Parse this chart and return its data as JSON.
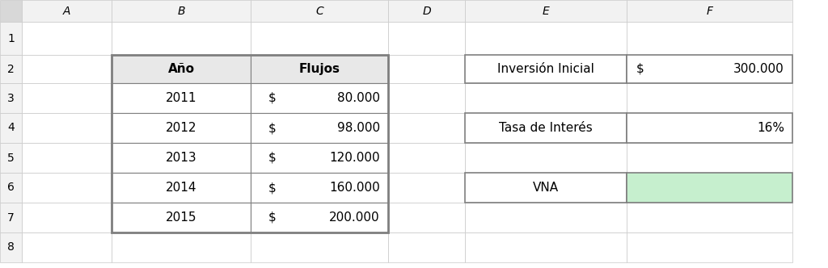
{
  "col_headers": [
    "A",
    "B",
    "C",
    "D",
    "E",
    "F"
  ],
  "row_numbers": [
    "1",
    "2",
    "3",
    "4",
    "5",
    "6",
    "7",
    "8"
  ],
  "table_headers": [
    "Año",
    "Flujos"
  ],
  "years": [
    "2011",
    "2012",
    "2013",
    "2014",
    "2015"
  ],
  "flows_value": [
    "80.000",
    "98.000",
    "120.000",
    "160.000",
    "200.000"
  ],
  "inv_label": "Inversión Inicial",
  "inv_dollar": "$",
  "inv_value": "300.000",
  "tasa_label": "Tasa de Interés",
  "tasa_value": "16%",
  "vna_label": "VNA",
  "bg_color": "#ffffff",
  "grid_color": "#c8c8c8",
  "table_border_color": "#7f7f7f",
  "text_color": "#000000",
  "green_cell_color": "#c6efce",
  "col_label_color": "#f2f2f2",
  "row_label_color": "#f2f2f2",
  "corner_color": "#d8d8d8",
  "header_bg": "#e8e8e8",
  "font_size": 11,
  "header_font_size": 11,
  "col_label_fontsize": 10,
  "row_label_fontsize": 10
}
